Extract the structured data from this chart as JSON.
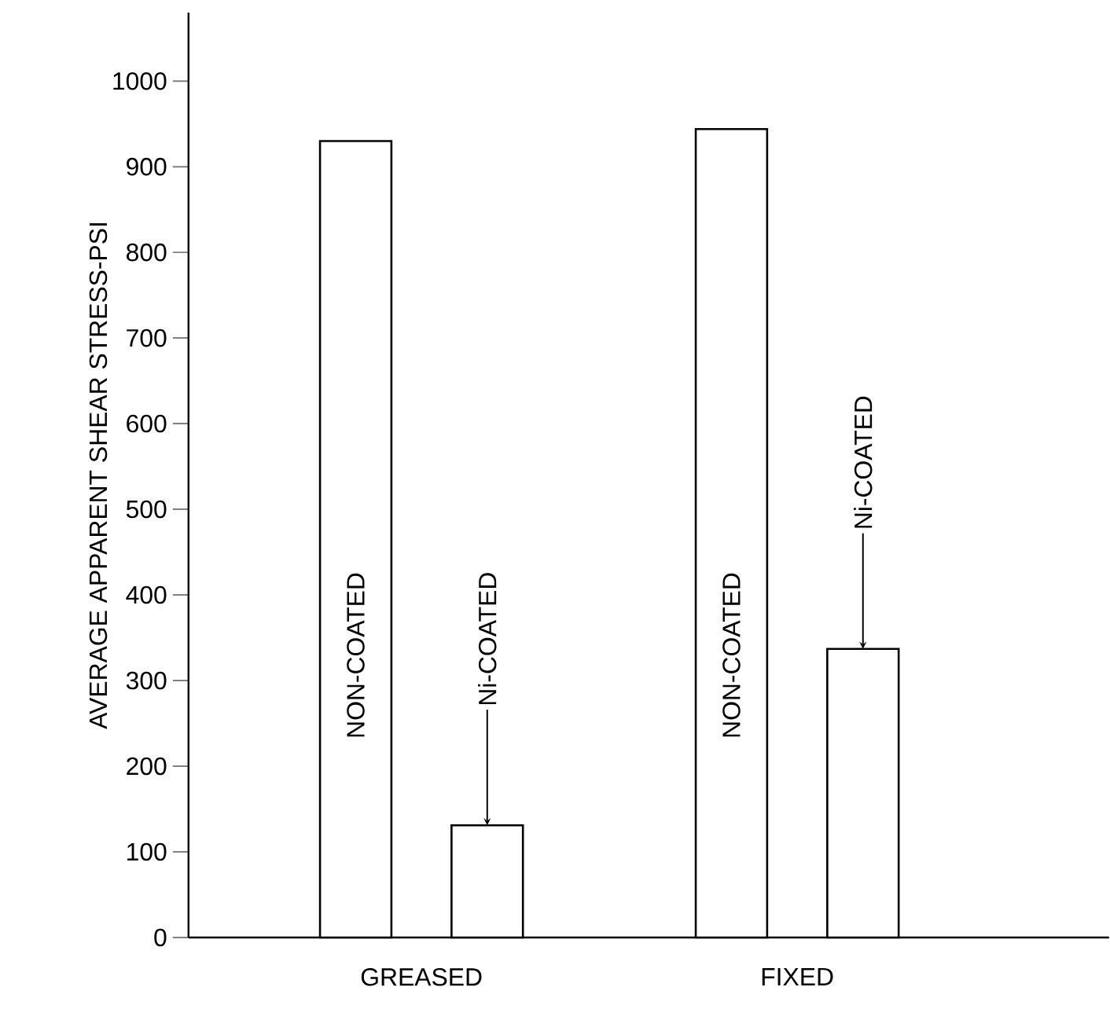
{
  "chart_data": {
    "type": "bar",
    "ylabel": "AVERAGE APPARENT SHEAR STRESS-PSI",
    "categories": [
      "GREASED",
      "FIXED"
    ],
    "series": [
      {
        "name": "NON-COATED",
        "color": "#000000",
        "values": [
          930,
          944
        ]
      },
      {
        "name": "Ni-COATED",
        "color": "#000000",
        "values": [
          131,
          337
        ]
      }
    ],
    "ylim": [
      0,
      1080
    ],
    "yticks": [
      0,
      100,
      200,
      300,
      400,
      500,
      600,
      700,
      800,
      900,
      1000
    ]
  }
}
